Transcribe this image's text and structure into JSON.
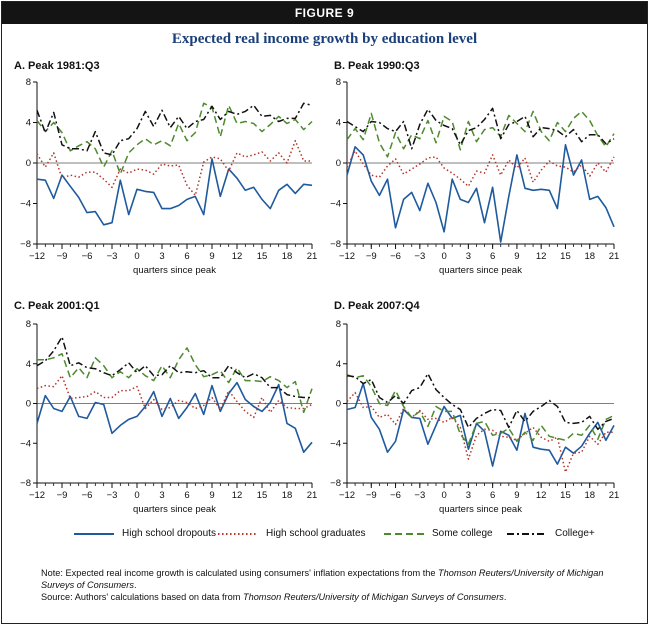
{
  "figure_label": "FIGURE 9",
  "title": "Expected real income growth by education level",
  "legend": [
    {
      "name": "High school dropouts",
      "color": "#1f5a9e",
      "dash": "solid"
    },
    {
      "name": "High school graduates",
      "color": "#b5342a",
      "dash": "dotted"
    },
    {
      "name": "Some college",
      "color": "#4d8a2e",
      "dash": "dashed"
    },
    {
      "name": "College+",
      "color": "#111111",
      "dash": "dashdot"
    }
  ],
  "notes": {
    "note_prefix": "Note: Expected real income growth is calculated using consumers' inflation expectations from the ",
    "note_source": "Thomson Reuters/University of Michigan Surveys of Consumers",
    "note_suffix": ".",
    "source_prefix": "Source: Authors' calculations based on data from ",
    "source_name": "Thomson Reuters/University of Michigan Surveys of Consumers",
    "source_suffix": "."
  },
  "chart_data": [
    {
      "type": "line",
      "title": "A. Peak 1981:Q3",
      "xlabel": "quarters since peak",
      "ylabel": "",
      "xlim": [
        -12,
        21
      ],
      "ylim": [
        -8,
        8
      ],
      "xticks": [
        -12,
        -9,
        -6,
        -3,
        0,
        3,
        6,
        9,
        12,
        15,
        18,
        21
      ],
      "yticks": [
        -8,
        -4,
        0,
        4,
        8
      ],
      "x": [
        -12,
        -11,
        -10,
        -9,
        -8,
        -7,
        -6,
        -5,
        -4,
        -3,
        -2,
        -1,
        0,
        1,
        2,
        3,
        4,
        5,
        6,
        7,
        8,
        9,
        10,
        11,
        12,
        13,
        14,
        15,
        16,
        17,
        18,
        19,
        20,
        21
      ],
      "series": [
        {
          "name": "High school dropouts",
          "values": [
            -1.6,
            -1.7,
            -3.5,
            -1.2,
            -2.3,
            -3.4,
            -4.9,
            -4.8,
            -6.1,
            -5.9,
            -1.7,
            -5.1,
            -2.6,
            -2.8,
            -2.9,
            -4.5,
            -4.5,
            -4.2,
            -3.6,
            -3.3,
            -5.1,
            0.4,
            -3.3,
            -0.6,
            -1.5,
            -2.7,
            -2.4,
            -3.6,
            -4.5,
            -2.7,
            -2.1,
            -3.0,
            -2.1,
            -2.2
          ]
        },
        {
          "name": "High school graduates",
          "values": [
            0.9,
            -0.4,
            1.0,
            -1.5,
            -1.2,
            -1.4,
            -0.9,
            -0.9,
            -1.6,
            -2.4,
            -0.6,
            -1.0,
            -0.6,
            -0.7,
            -1.1,
            -0.1,
            -0.3,
            -0.2,
            -2.2,
            -3.2,
            0.1,
            0.6,
            0.4,
            -0.8,
            1.0,
            0.6,
            0.8,
            1.1,
            0.2,
            1.0,
            0.0,
            2.2,
            0.2,
            0.2
          ]
        },
        {
          "name": "Some college",
          "values": [
            4.2,
            3.1,
            4.0,
            3.0,
            1.2,
            1.7,
            2.1,
            1.4,
            -0.4,
            1.2,
            -1.1,
            1.0,
            1.8,
            2.4,
            1.8,
            2.2,
            1.7,
            3.9,
            2.2,
            3.0,
            5.9,
            5.5,
            2.6,
            5.7,
            3.9,
            4.1,
            3.9,
            3.1,
            3.8,
            4.6,
            3.9,
            4.3,
            3.3,
            4.1
          ]
        },
        {
          "name": "College+",
          "values": [
            5.2,
            3.0,
            5.0,
            1.8,
            1.4,
            1.4,
            1.2,
            3.1,
            1.0,
            0.8,
            2.2,
            2.4,
            3.4,
            5.1,
            3.6,
            5.2,
            3.5,
            4.6,
            3.4,
            4.1,
            4.3,
            5.6,
            4.3,
            5.1,
            4.8,
            5.1,
            5.7,
            4.6,
            4.7,
            4.1,
            4.4,
            4.4,
            5.9,
            5.7
          ]
        }
      ]
    },
    {
      "type": "line",
      "title": "B. Peak 1990:Q3",
      "xlabel": "quarters since peak",
      "ylabel": "",
      "xlim": [
        -12,
        21
      ],
      "ylim": [
        -8,
        8
      ],
      "xticks": [
        -12,
        -9,
        -6,
        -3,
        0,
        3,
        6,
        9,
        12,
        15,
        18,
        21
      ],
      "yticks": [
        -8,
        -4,
        0,
        4,
        8
      ],
      "x": [
        -12,
        -11,
        -10,
        -9,
        -8,
        -7,
        -6,
        -5,
        -4,
        -3,
        -2,
        -1,
        0,
        1,
        2,
        3,
        4,
        5,
        6,
        7,
        8,
        9,
        10,
        11,
        12,
        13,
        14,
        15,
        16,
        17,
        18,
        19,
        20,
        21
      ],
      "series": [
        {
          "name": "High school dropouts",
          "values": [
            -1.2,
            1.6,
            0.8,
            -1.8,
            -3.2,
            -1.6,
            -6.4,
            -3.6,
            -2.9,
            -4.7,
            -2.0,
            -3.9,
            -6.8,
            -1.6,
            -3.6,
            -3.9,
            -2.5,
            -5.9,
            -2.4,
            -7.8,
            -3.3,
            0.8,
            -2.5,
            -2.7,
            -2.6,
            -2.7,
            -4.5,
            1.8,
            -1.2,
            0.3,
            -3.6,
            -3.3,
            -4.4,
            -6.3
          ]
        },
        {
          "name": "High school graduates",
          "values": [
            -0.4,
            1.2,
            -0.1,
            -1.2,
            -1.4,
            -0.3,
            0.4,
            -1.1,
            -0.6,
            -0.1,
            0.5,
            0.6,
            -0.5,
            -1.0,
            -1.6,
            -2.3,
            -0.8,
            -1.0,
            0.8,
            -1.2,
            0.3,
            -0.5,
            0.5,
            -1.9,
            -0.7,
            0.2,
            -0.3,
            -0.4,
            -0.9,
            -0.2,
            -1.3,
            0.0,
            -0.9,
            0.6
          ]
        },
        {
          "name": "Some college",
          "values": [
            2.3,
            3.4,
            2.3,
            4.9,
            2.0,
            0.6,
            3.0,
            1.4,
            2.8,
            2.4,
            4.2,
            2.0,
            4.6,
            4.1,
            1.3,
            4.1,
            2.1,
            3.3,
            3.5,
            2.6,
            4.7,
            3.9,
            3.1,
            5.1,
            3.1,
            2.2,
            4.0,
            3.1,
            4.4,
            5.1,
            4.2,
            2.7,
            1.6,
            2.9
          ]
        },
        {
          "name": "College+",
          "values": [
            4.1,
            3.6,
            3.1,
            4.1,
            4.0,
            3.4,
            3.1,
            4.1,
            1.4,
            3.8,
            5.3,
            4.2,
            3.7,
            3.4,
            1.8,
            3.2,
            3.5,
            4.3,
            5.4,
            2.4,
            3.8,
            4.1,
            4.6,
            2.6,
            3.5,
            3.4,
            3.2,
            2.6,
            3.3,
            2.1,
            2.8,
            2.8,
            1.9,
            2.4
          ]
        }
      ]
    },
    {
      "type": "line",
      "title": "C. Peak 2001:Q1",
      "xlabel": "quarters since peak",
      "ylabel": "",
      "xlim": [
        -12,
        21
      ],
      "ylim": [
        -8,
        8
      ],
      "xticks": [
        -12,
        -9,
        -6,
        -3,
        0,
        3,
        6,
        9,
        12,
        15,
        18,
        21
      ],
      "yticks": [
        -8,
        -4,
        0,
        4,
        8
      ],
      "x": [
        -12,
        -11,
        -10,
        -9,
        -8,
        -7,
        -6,
        -5,
        -4,
        -3,
        -2,
        -1,
        0,
        1,
        2,
        3,
        4,
        5,
        6,
        7,
        8,
        9,
        10,
        11,
        12,
        13,
        14,
        15,
        16,
        17,
        18,
        19,
        20,
        21
      ],
      "series": [
        {
          "name": "High school dropouts",
          "values": [
            -2.0,
            0.8,
            -0.5,
            -0.8,
            0.7,
            -1.3,
            -1.5,
            0.1,
            -0.1,
            -3.0,
            -2.2,
            -1.6,
            -1.3,
            -0.3,
            1.2,
            -1.3,
            0.5,
            -1.5,
            -0.4,
            1.0,
            -1.1,
            1.8,
            -0.8,
            1.0,
            2.1,
            0.4,
            -0.3,
            -0.8,
            0.1,
            1.9,
            -2.0,
            -2.5,
            -4.9,
            -3.9
          ]
        },
        {
          "name": "High school graduates",
          "values": [
            1.5,
            1.8,
            1.7,
            2.8,
            0.5,
            0.6,
            0.7,
            1.2,
            0.6,
            0.6,
            1.3,
            1.3,
            1.7,
            -0.5,
            0.4,
            -0.6,
            -0.4,
            0.3,
            0.1,
            -0.5,
            -0.2,
            0.6,
            -0.6,
            1.3,
            0.2,
            -0.8,
            -1.4,
            0.6,
            -0.9,
            0.3,
            -0.4,
            -0.5,
            -0.5,
            -0.1
          ]
        },
        {
          "name": "Some college",
          "values": [
            4.4,
            4.4,
            4.6,
            5.0,
            2.6,
            3.6,
            2.6,
            4.6,
            3.8,
            2.6,
            3.2,
            2.6,
            3.5,
            2.8,
            2.3,
            3.8,
            2.6,
            4.4,
            5.6,
            3.9,
            2.7,
            2.9,
            3.3,
            2.1,
            3.6,
            2.3,
            2.3,
            2.2,
            2.7,
            2.3,
            1.6,
            2.2,
            -0.9,
            1.5
          ]
        },
        {
          "name": "College+",
          "values": [
            3.8,
            4.3,
            5.3,
            6.7,
            3.8,
            4.1,
            3.6,
            3.5,
            3.1,
            2.8,
            3.4,
            4.1,
            3.1,
            3.8,
            2.8,
            2.9,
            3.8,
            3.1,
            3.2,
            3.1,
            3.3,
            2.6,
            2.6,
            3.8,
            3.1,
            2.6,
            3.0,
            2.6,
            1.6,
            1.6,
            0.9,
            0.7,
            0.6,
            0.6
          ]
        }
      ]
    },
    {
      "type": "line",
      "title": "D. Peak 2007:Q4",
      "xlabel": "quarters since peak",
      "ylabel": "",
      "xlim": [
        -12,
        21
      ],
      "ylim": [
        -8,
        8
      ],
      "xticks": [
        -12,
        -9,
        -6,
        -3,
        0,
        3,
        6,
        9,
        12,
        15,
        18,
        21
      ],
      "yticks": [
        -8,
        -4,
        0,
        4,
        8
      ],
      "x": [
        -12,
        -11,
        -10,
        -9,
        -8,
        -7,
        -6,
        -5,
        -4,
        -3,
        -2,
        -1,
        0,
        1,
        2,
        3,
        4,
        5,
        6,
        7,
        8,
        9,
        10,
        11,
        12,
        13,
        14,
        15,
        16,
        17,
        18,
        19,
        20,
        21
      ],
      "series": [
        {
          "name": "High school dropouts",
          "values": [
            -0.6,
            -0.4,
            2.0,
            -1.4,
            -2.6,
            -4.9,
            -3.8,
            -0.6,
            -1.4,
            -1.5,
            -4.1,
            -2.2,
            -0.3,
            -1.5,
            -1.2,
            -4.6,
            -2.0,
            -2.8,
            -6.3,
            -2.8,
            -3.2,
            -4.7,
            -1.0,
            -4.4,
            -4.6,
            -4.7,
            -6.1,
            -4.4,
            -5.0,
            -4.3,
            -3.0,
            -1.9,
            -3.7,
            -2.2
          ]
        },
        {
          "name": "High school graduates",
          "values": [
            0.2,
            1.1,
            -0.4,
            -0.3,
            -1.4,
            -1.1,
            -2.1,
            -0.5,
            -1.4,
            -0.7,
            -1.6,
            -1.5,
            -1.9,
            -1.4,
            -2.4,
            -5.6,
            -3.2,
            -2.6,
            -2.7,
            -3.3,
            -3.4,
            -3.7,
            -3.0,
            -2.4,
            -3.4,
            -3.8,
            -3.4,
            -6.9,
            -5.0,
            -4.9,
            -3.3,
            -4.1,
            -2.9,
            -2.9
          ]
        },
        {
          "name": "Some college",
          "values": [
            2.9,
            2.6,
            2.8,
            1.7,
            0.0,
            -0.2,
            1.3,
            -0.3,
            -1.4,
            -0.8,
            -2.3,
            -0.3,
            -0.8,
            -0.8,
            -3.1,
            -4.1,
            -2.0,
            -1.8,
            -3.2,
            -3.0,
            -2.5,
            -3.8,
            -2.9,
            -3.7,
            -2.2,
            -3.3,
            -3.5,
            -3.7,
            -3.0,
            -3.2,
            -2.2,
            -3.6,
            -1.6,
            -1.2
          ]
        },
        {
          "name": "College+",
          "values": [
            2.8,
            2.7,
            2.0,
            2.4,
            0.6,
            0.1,
            0.8,
            0.0,
            1.3,
            1.6,
            3.0,
            1.4,
            0.6,
            -0.1,
            -0.6,
            -2.4,
            -1.5,
            -1.0,
            -0.6,
            -0.7,
            -2.4,
            -0.7,
            -1.8,
            -0.8,
            -0.3,
            0.3,
            -0.3,
            -1.9,
            -2.0,
            -1.9,
            -1.3,
            -2.6,
            -1.8,
            -1.5
          ]
        }
      ]
    }
  ]
}
